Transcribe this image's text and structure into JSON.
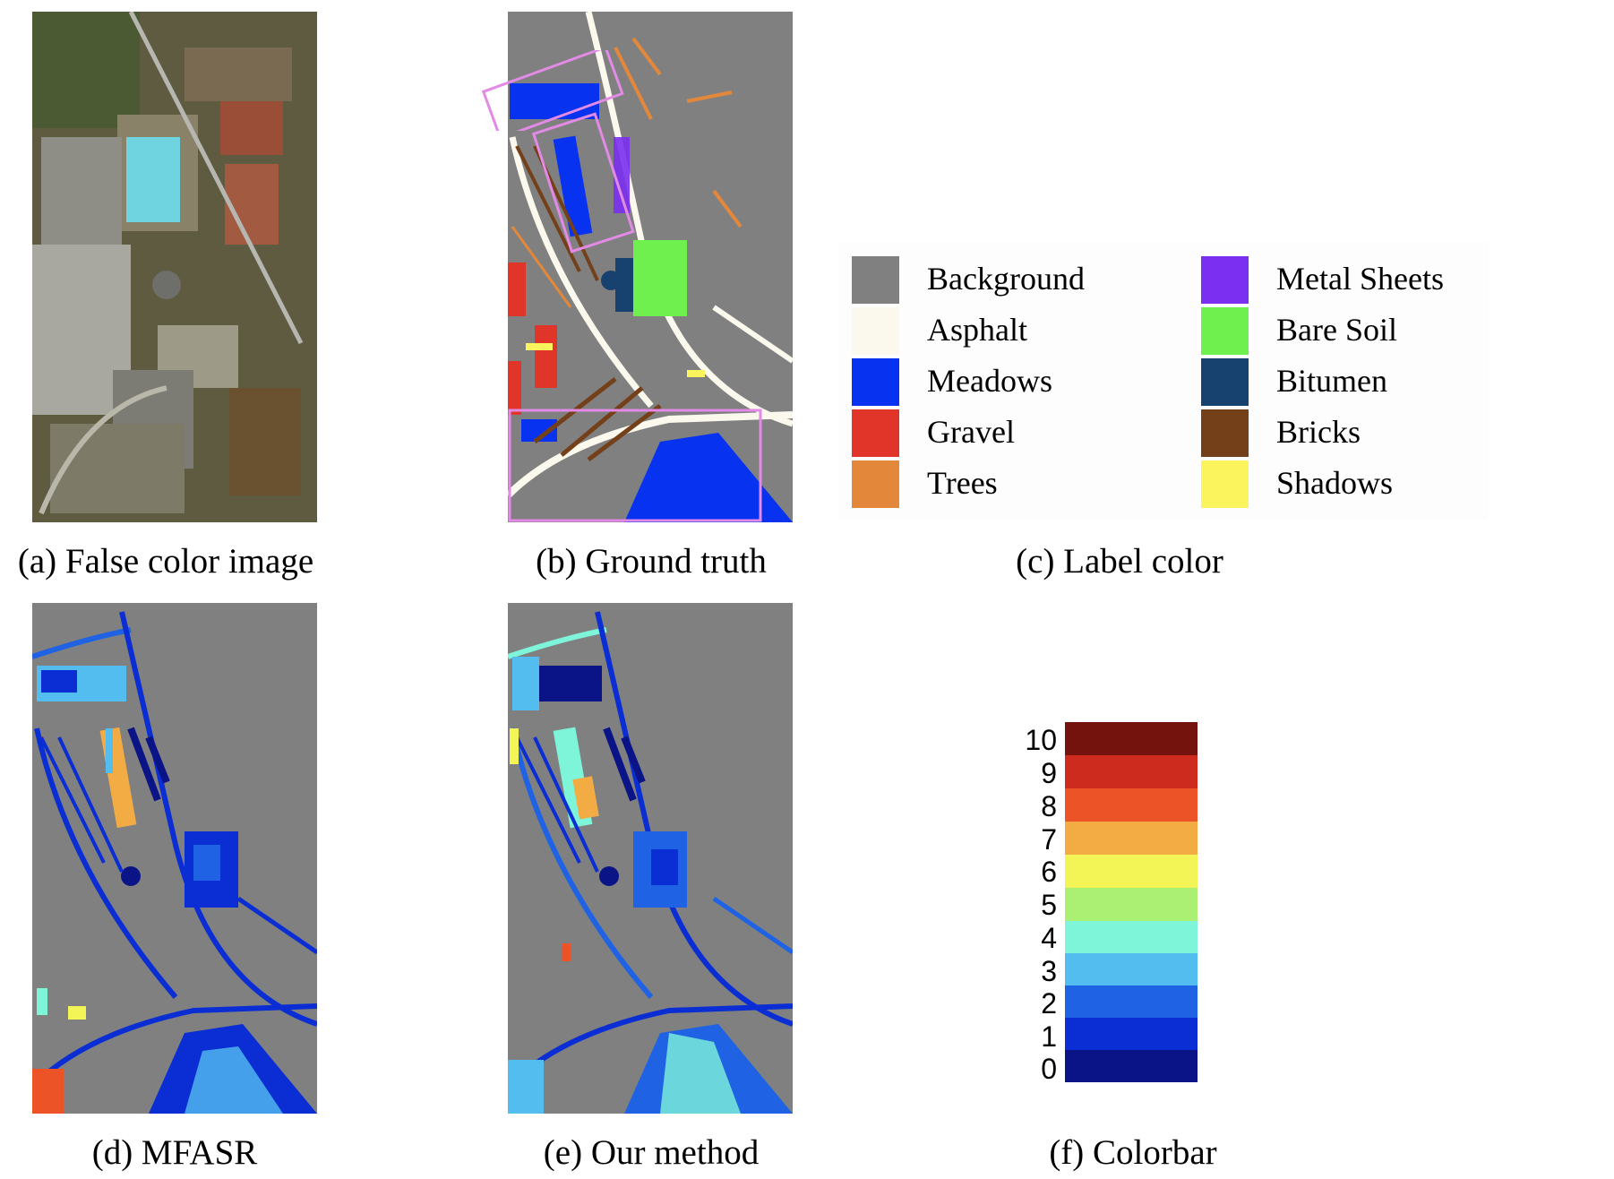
{
  "captions": {
    "a": "(a) False color image",
    "b": "(b) Ground truth",
    "c": "(c) Label color",
    "d": "(d) MFASR",
    "e": "(e) Our method",
    "f": "(f) Colorbar"
  },
  "legend": [
    {
      "label": "Background",
      "color": "#808080"
    },
    {
      "label": "Asphalt",
      "color": "#fbf8ee"
    },
    {
      "label": "Meadows",
      "color": "#0733f0"
    },
    {
      "label": "Gravel",
      "color": "#e2352a"
    },
    {
      "label": "Trees",
      "color": "#e3883a"
    },
    {
      "label": "Metal Sheets",
      "color": "#7b2ff0"
    },
    {
      "label": "Bare Soil",
      "color": "#6ff04f"
    },
    {
      "label": "Bitumen",
      "color": "#17416f"
    },
    {
      "label": "Bricks",
      "color": "#74401a"
    },
    {
      "label": "Shadows",
      "color": "#fbf45c"
    }
  ],
  "colorbar": {
    "ticks": [
      "10",
      "9",
      "8",
      "7",
      "6",
      "5",
      "4",
      "3",
      "2",
      "1",
      "0"
    ],
    "colors": [
      "#74120e",
      "#cd2b1e",
      "#ec5427",
      "#f3ab43",
      "#f3f455",
      "#abef73",
      "#7ef4d9",
      "#53bdf0",
      "#1f63e4",
      "#0a2ed4",
      "#0a1486"
    ]
  }
}
